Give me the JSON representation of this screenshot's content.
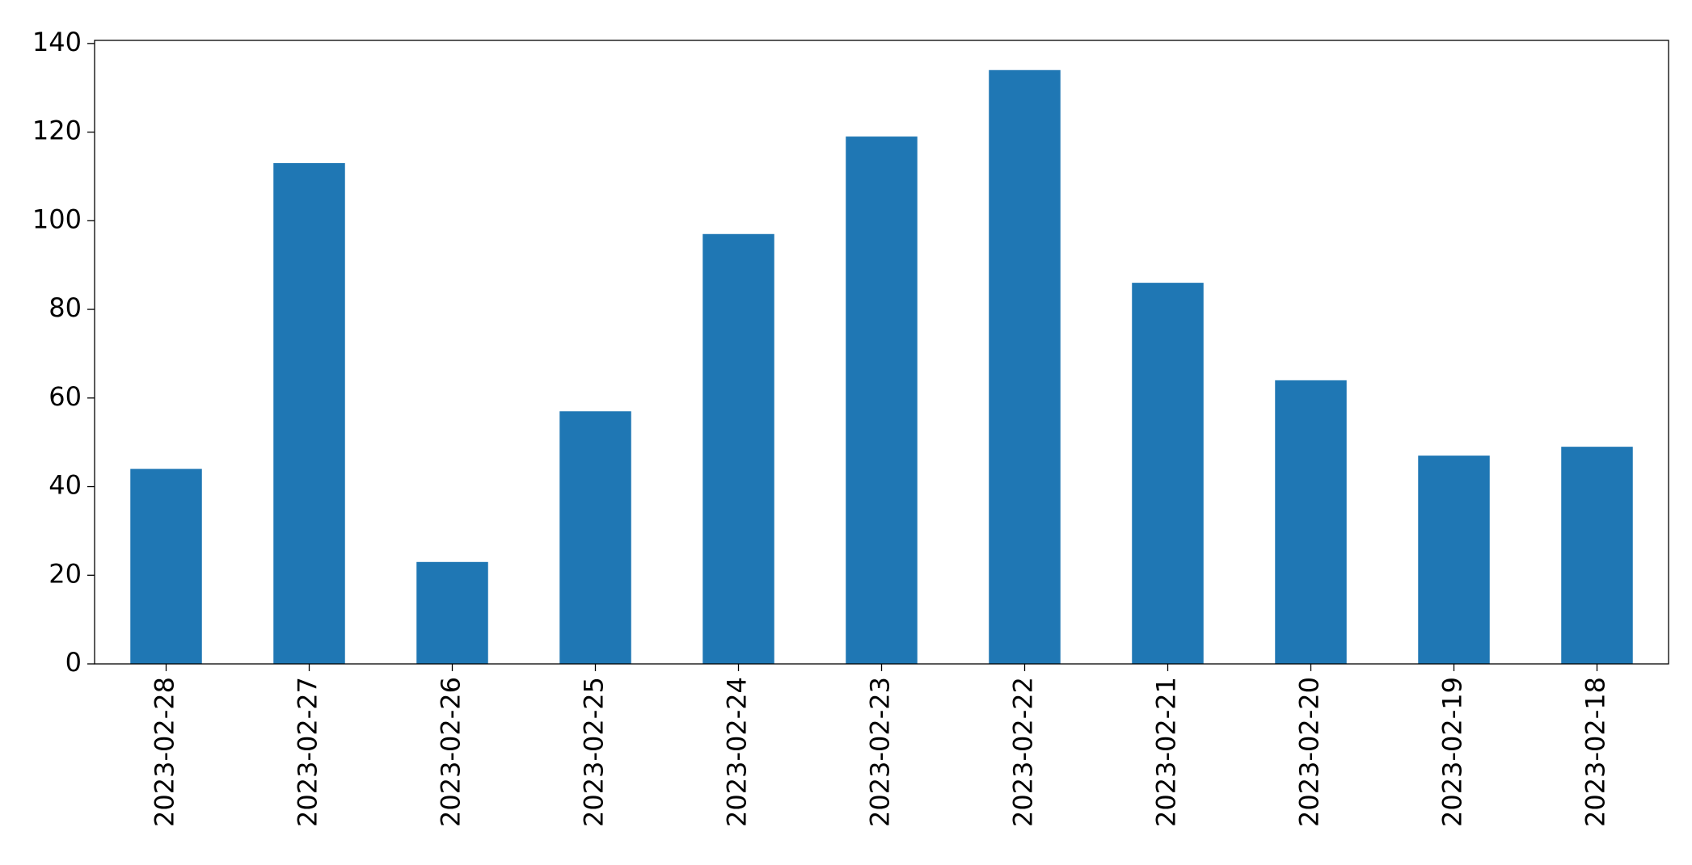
{
  "chart_data": {
    "type": "bar",
    "categories": [
      "2023-02-28",
      "2023-02-27",
      "2023-02-26",
      "2023-02-25",
      "2023-02-24",
      "2023-02-23",
      "2023-02-22",
      "2023-02-21",
      "2023-02-20",
      "2023-02-19",
      "2023-02-18"
    ],
    "values": [
      44,
      113,
      23,
      57,
      97,
      119,
      134,
      86,
      64,
      47,
      49
    ],
    "color": "#1f77b4",
    "ylim": [
      0,
      140.7
    ],
    "yticks": [
      0,
      20,
      40,
      60,
      80,
      100,
      120,
      140
    ],
    "grid": false
  }
}
